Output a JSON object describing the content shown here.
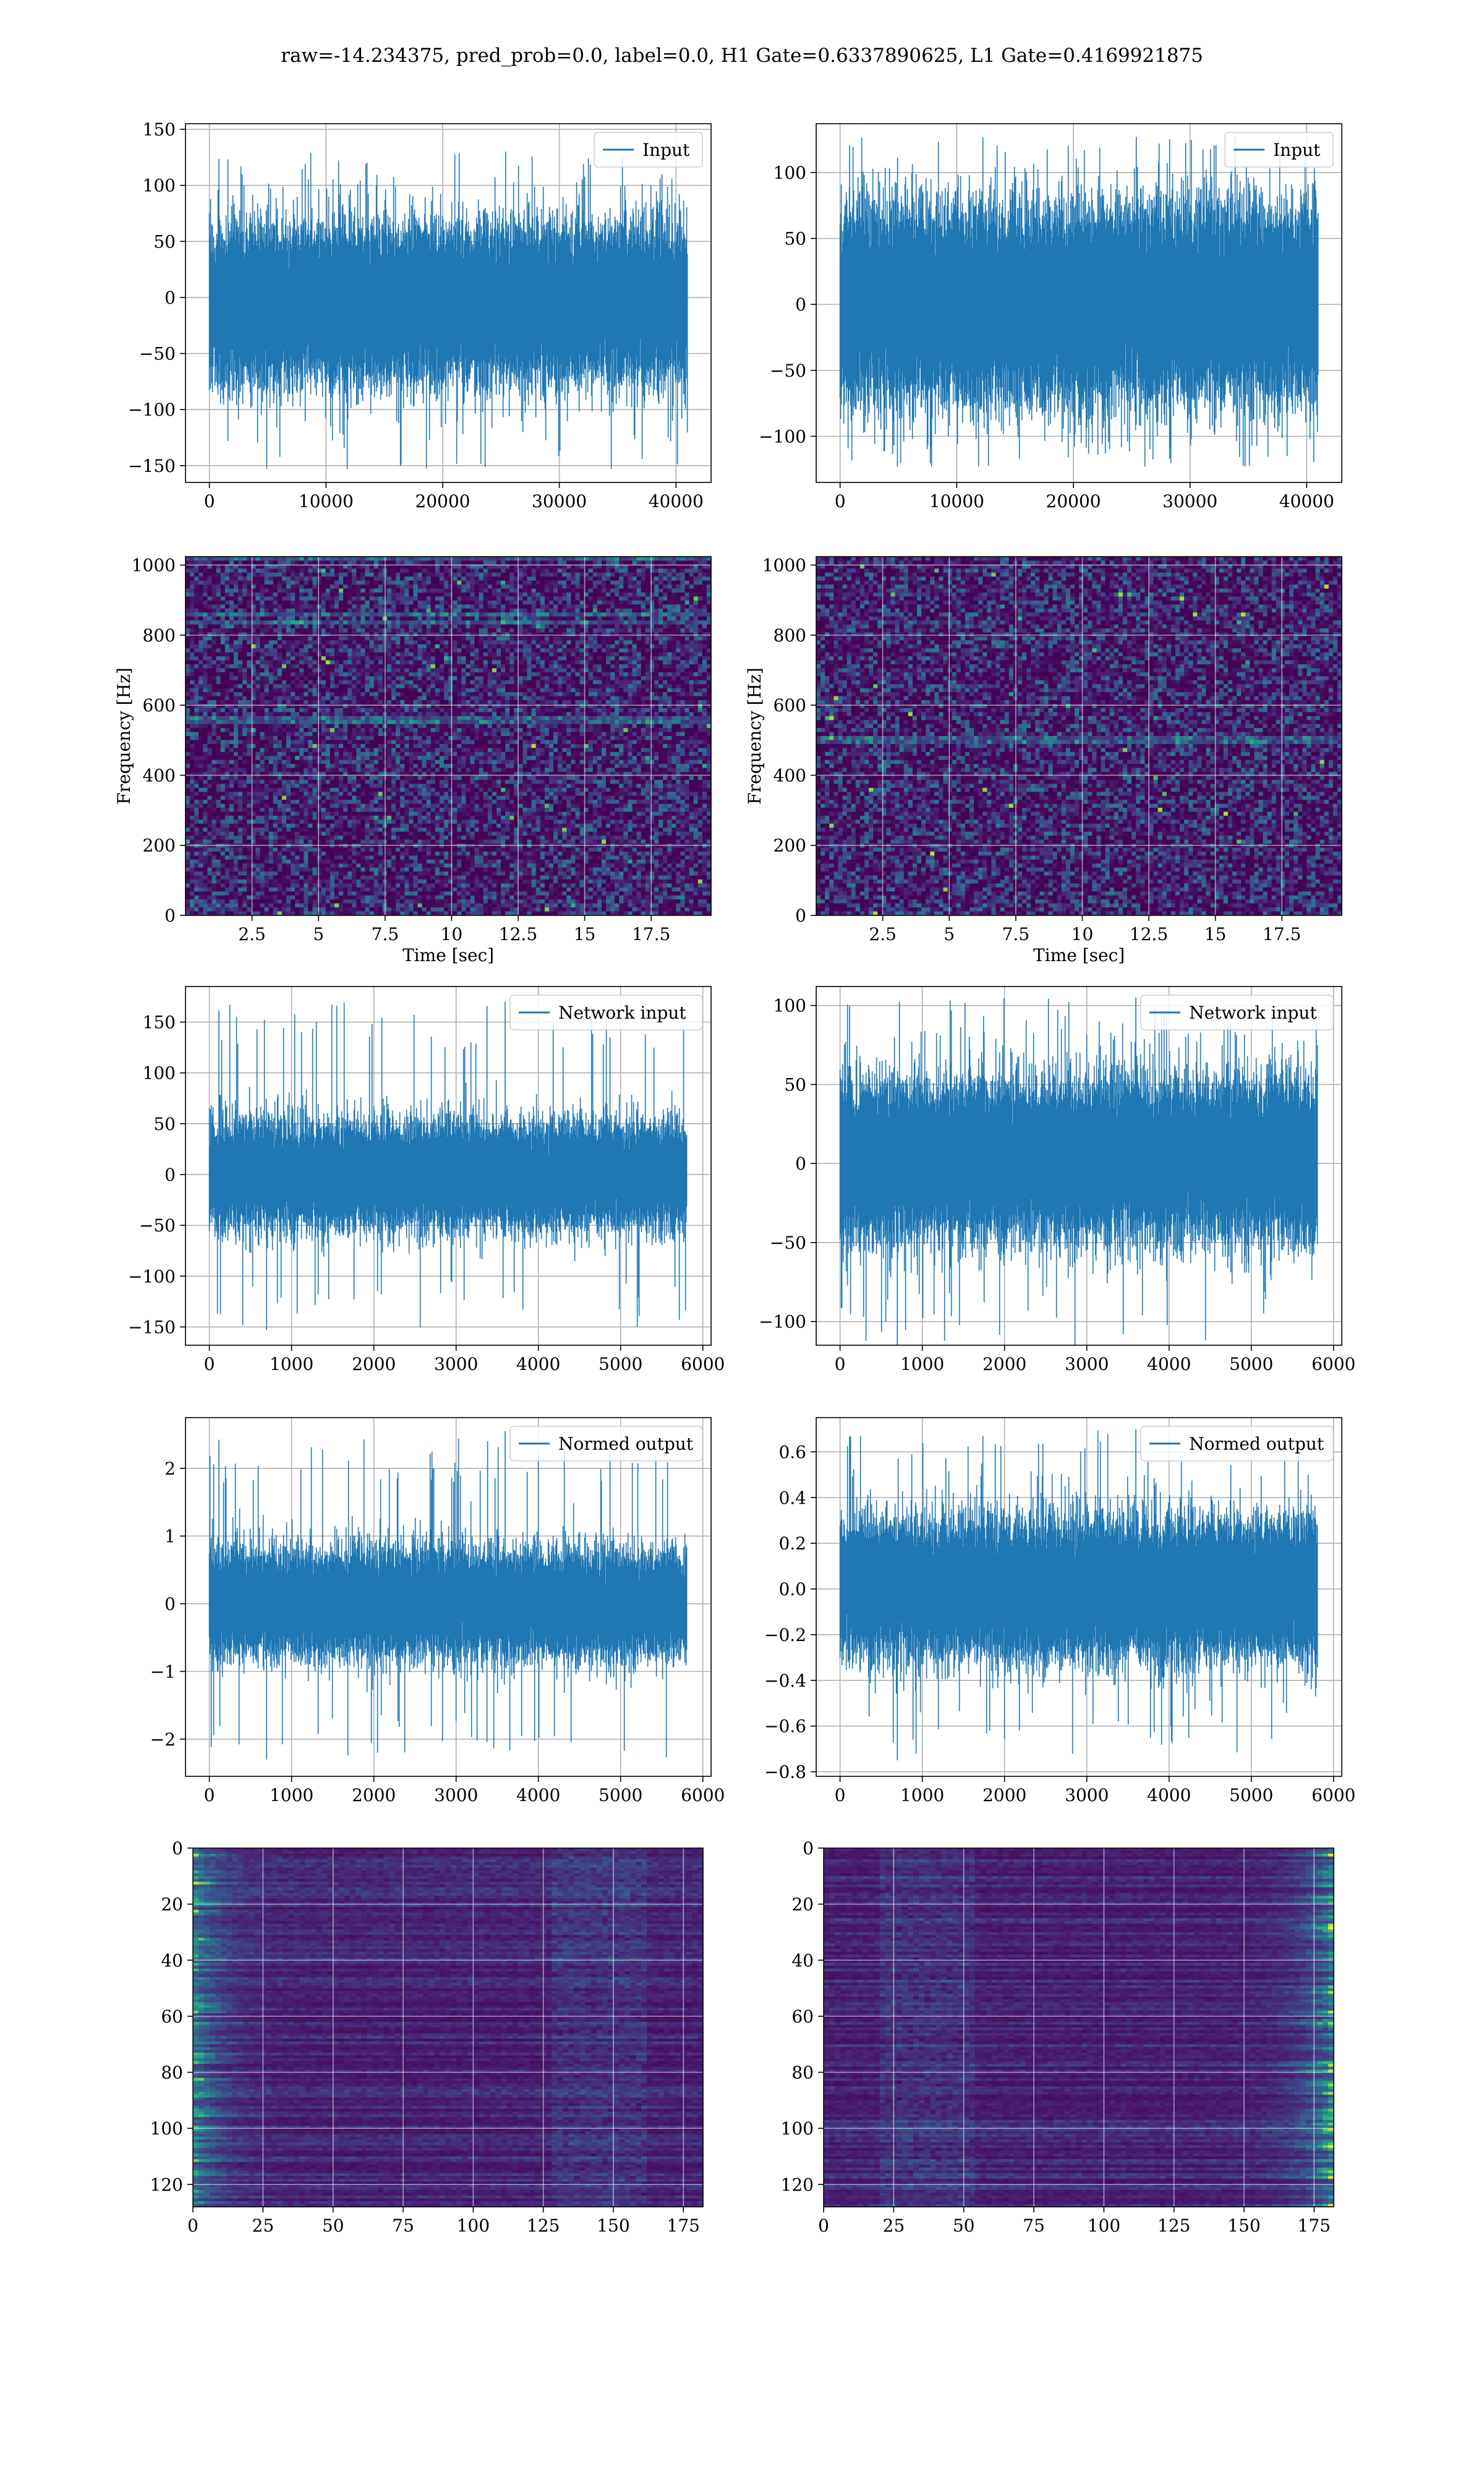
{
  "figure": {
    "title": "raw=-14.234375, pred_prob=0.0, label=0.0, H1 Gate=0.6337890625, L1 Gate=0.4169921875"
  },
  "colors": {
    "series": "#1f77b4",
    "grid": "#b0b0b0",
    "viridis_low": "#440154",
    "viridis_mid": "#21918c",
    "viridis_high": "#fde725"
  },
  "chart_data": [
    {
      "id": "h1-input",
      "type": "line",
      "detector_column": "left",
      "legend": "Input",
      "legend_position": "upper right",
      "grid": true,
      "xlim": [
        -2048,
        43008
      ],
      "ylim": [
        -165,
        155
      ],
      "xticks": [
        0,
        10000,
        20000,
        30000,
        40000
      ],
      "yticks": [
        -150,
        -100,
        -50,
        0,
        50,
        100,
        150
      ],
      "n_points": 40960,
      "envelope_typical": [
        -85,
        75
      ],
      "envelope_extreme": [
        -153,
        130
      ]
    },
    {
      "id": "l1-input",
      "type": "line",
      "detector_column": "right",
      "legend": "Input",
      "legend_position": "upper right",
      "grid": true,
      "xlim": [
        -2048,
        43008
      ],
      "ylim": [
        -135,
        137
      ],
      "xticks": [
        0,
        10000,
        20000,
        30000,
        40000
      ],
      "yticks": [
        -100,
        -50,
        0,
        50,
        100
      ],
      "n_points": 40960,
      "envelope_typical": [
        -85,
        85
      ],
      "envelope_extreme": [
        -123,
        127
      ]
    },
    {
      "id": "h1-spectrogram",
      "type": "heatmap",
      "detector_column": "left",
      "xlabel": "Time [sec]",
      "ylabel": "Frequency [Hz]",
      "grid": true,
      "xlim": [
        0,
        19.75
      ],
      "ylim": [
        0,
        1024
      ],
      "xticks": [
        2.5,
        5.0,
        7.5,
        10.0,
        12.5,
        15.0,
        17.5
      ],
      "yticks": [
        0,
        200,
        400,
        600,
        800,
        1000
      ],
      "colormap": "viridis",
      "lines_hz": [
        1018,
        835,
        555,
        860
      ]
    },
    {
      "id": "l1-spectrogram",
      "type": "heatmap",
      "detector_column": "right",
      "xlabel": "Time [sec]",
      "ylabel": "Frequency [Hz]",
      "grid": true,
      "xlim": [
        0,
        19.75
      ],
      "ylim": [
        0,
        1024
      ],
      "xticks": [
        2.5,
        5.0,
        7.5,
        10.0,
        12.5,
        15.0,
        17.5
      ],
      "yticks": [
        0,
        200,
        400,
        600,
        800,
        1000
      ],
      "colormap": "viridis",
      "lines_hz": [
        500
      ]
    },
    {
      "id": "h1-network-input",
      "type": "line",
      "detector_column": "left",
      "legend": "Network input",
      "legend_position": "upper right",
      "grid": true,
      "xlim": [
        -290,
        6100
      ],
      "ylim": [
        -168,
        185
      ],
      "xticks": [
        0,
        1000,
        2000,
        3000,
        4000,
        5000,
        6000
      ],
      "yticks": [
        -150,
        -100,
        -50,
        0,
        50,
        100,
        150
      ],
      "n_points": 5800,
      "envelope_typical": [
        -60,
        60
      ],
      "envelope_extreme": [
        -153,
        170
      ]
    },
    {
      "id": "l1-network-input",
      "type": "line",
      "detector_column": "right",
      "legend": "Network input",
      "legend_position": "upper right",
      "grid": true,
      "xlim": [
        -290,
        6100
      ],
      "ylim": [
        -115,
        112
      ],
      "xticks": [
        0,
        1000,
        2000,
        3000,
        4000,
        5000,
        6000
      ],
      "yticks": [
        -100,
        -50,
        0,
        50,
        100
      ],
      "n_points": 5800,
      "envelope_typical": [
        -55,
        60
      ],
      "envelope_extreme": [
        -115,
        105
      ]
    },
    {
      "id": "h1-normed-output",
      "type": "line",
      "detector_column": "left",
      "legend": "Normed output",
      "legend_position": "upper right",
      "grid": true,
      "xlim": [
        -290,
        6100
      ],
      "ylim": [
        -2.55,
        2.75
      ],
      "xticks": [
        0,
        1000,
        2000,
        3000,
        4000,
        5000,
        6000
      ],
      "yticks": [
        -2,
        -1,
        0,
        1,
        2
      ],
      "n_points": 5800,
      "envelope_typical": [
        -0.9,
        0.9
      ],
      "envelope_extreme": [
        -2.3,
        2.55
      ]
    },
    {
      "id": "l1-normed-output",
      "type": "line",
      "detector_column": "right",
      "legend": "Normed output",
      "legend_position": "upper right",
      "grid": true,
      "xlim": [
        -290,
        6100
      ],
      "ylim": [
        -0.82,
        0.75
      ],
      "xticks": [
        0,
        1000,
        2000,
        3000,
        4000,
        5000,
        6000
      ],
      "yticks": [
        -0.8,
        -0.6,
        -0.4,
        -0.2,
        0.0,
        0.2,
        0.4,
        0.6
      ],
      "ytick_labels": [
        "−0.8",
        "−0.6",
        "−0.4",
        "−0.2",
        "0.0",
        "0.2",
        "0.4",
        "0.6"
      ],
      "n_points": 5800,
      "envelope_typical": [
        -0.35,
        0.35
      ],
      "envelope_extreme": [
        -0.75,
        0.7
      ]
    },
    {
      "id": "h1-feature-map",
      "type": "heatmap",
      "detector_column": "left",
      "grid": true,
      "xlim": [
        0,
        182
      ],
      "ylim": [
        128,
        0
      ],
      "xticks": [
        0,
        25,
        50,
        75,
        100,
        125,
        150,
        175
      ],
      "yticks": [
        0,
        20,
        40,
        60,
        80,
        100,
        120
      ],
      "colormap": "viridis",
      "rows": 128,
      "cols": 182,
      "bright_edge": "left"
    },
    {
      "id": "l1-feature-map",
      "type": "heatmap",
      "detector_column": "right",
      "grid": true,
      "xlim": [
        0,
        182
      ],
      "ylim": [
        128,
        0
      ],
      "xticks": [
        0,
        25,
        50,
        75,
        100,
        125,
        150,
        175
      ],
      "yticks": [
        0,
        20,
        40,
        60,
        80,
        100,
        120
      ],
      "colormap": "viridis",
      "rows": 128,
      "cols": 182,
      "bright_edge": "right"
    }
  ]
}
